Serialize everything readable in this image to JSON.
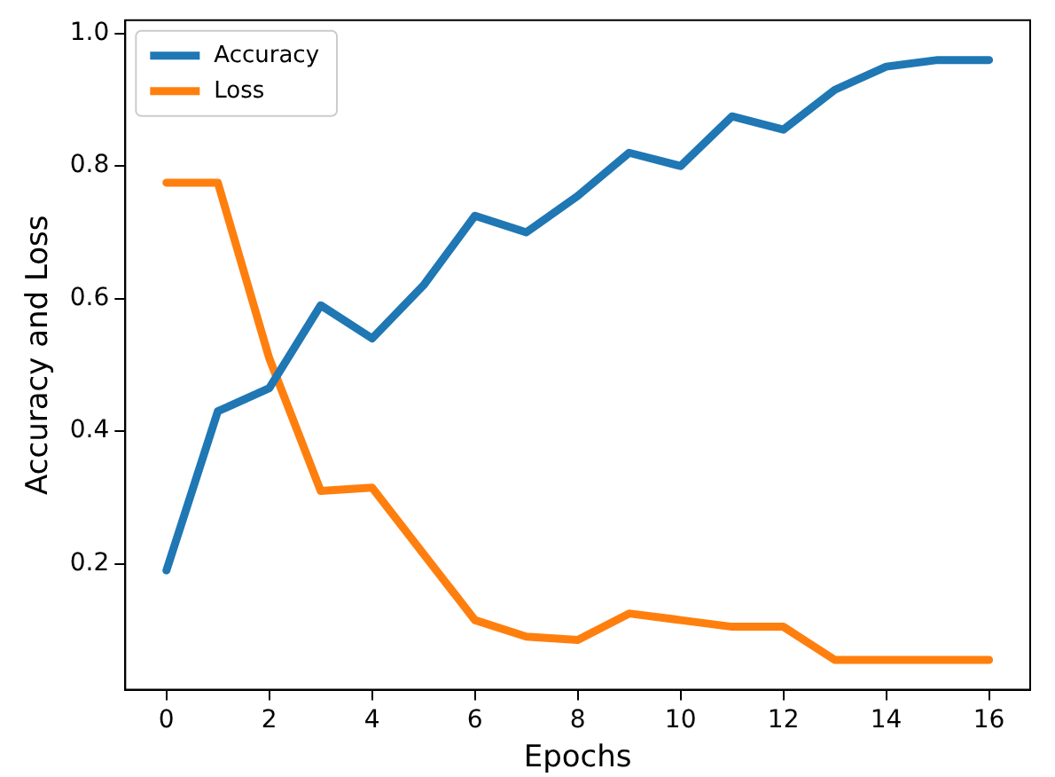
{
  "chart_data": {
    "type": "line",
    "xlabel": "Epochs",
    "ylabel": "Accuracy and Loss",
    "x": [
      0,
      1,
      2,
      3,
      4,
      5,
      6,
      7,
      8,
      9,
      10,
      11,
      12,
      13,
      14,
      15,
      16
    ],
    "series": [
      {
        "name": "Accuracy",
        "color": "#1f77b4",
        "values": [
          0.19,
          0.43,
          0.465,
          0.59,
          0.54,
          0.62,
          0.725,
          0.7,
          0.755,
          0.82,
          0.8,
          0.875,
          0.855,
          0.915,
          0.95,
          0.96,
          0.96
        ]
      },
      {
        "name": "Loss",
        "color": "#ff7f0e",
        "values": [
          0.775,
          0.775,
          0.51,
          0.31,
          0.315,
          0.215,
          0.115,
          0.09,
          0.085,
          0.125,
          0.115,
          0.105,
          0.105,
          0.055,
          0.055,
          0.055,
          0.055
        ]
      }
    ],
    "xlim": [
      -0.8,
      16.8
    ],
    "xticks": [
      0,
      2,
      4,
      6,
      8,
      10,
      12,
      14,
      16
    ],
    "ylim": [
      0.01,
      1.02
    ],
    "yticks": [
      {
        "value": 0.2,
        "label": "0.2"
      },
      {
        "value": 0.4,
        "label": "0.4"
      },
      {
        "value": 0.6,
        "label": "0.6"
      },
      {
        "value": 0.8,
        "label": "0.8"
      },
      {
        "value": 1.0,
        "label": "1.0"
      }
    ],
    "grid": false,
    "legend": "top left",
    "marker": "none",
    "line_style": "solid"
  }
}
